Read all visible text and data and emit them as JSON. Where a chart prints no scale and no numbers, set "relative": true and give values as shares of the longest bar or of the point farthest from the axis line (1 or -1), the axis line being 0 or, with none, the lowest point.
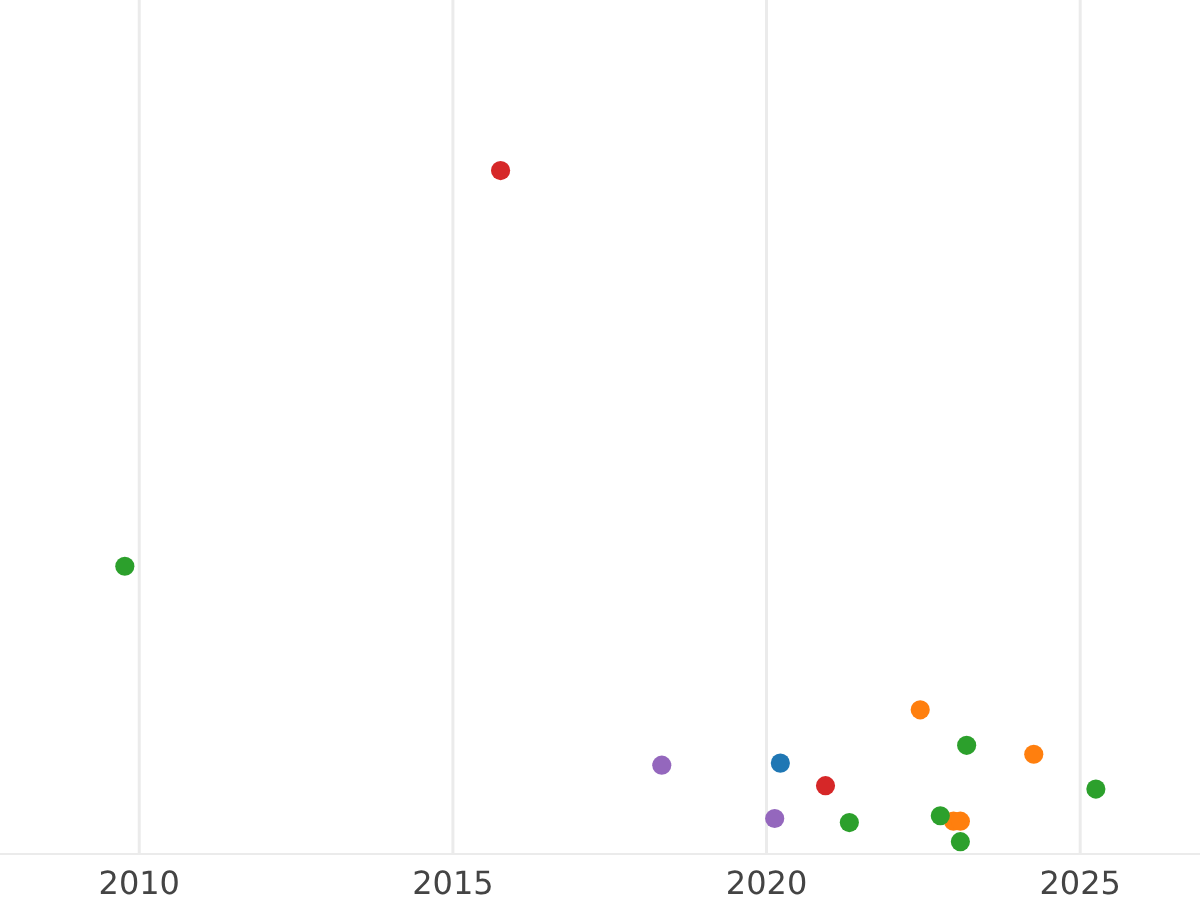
{
  "chart_data": {
    "type": "scatter",
    "relative": true,
    "xlim": [
      2007.78,
      2026.91
    ],
    "xticks": [
      2010,
      2015,
      2020,
      2025
    ],
    "grid": "x",
    "marker": "circle",
    "series": [
      {
        "color": "#1f77b4",
        "x": [
          2020.22
        ],
        "values": [
          0.133
        ]
      },
      {
        "color": "#ff7f0e",
        "x": [
          2022.45,
          2024.26,
          2022.98,
          2023.09
        ],
        "values": [
          0.211,
          0.146,
          0.048,
          0.048
        ]
      },
      {
        "color": "#2ca02c",
        "x": [
          2009.77,
          2023.19,
          2025.25,
          2021.32,
          2022.77,
          2023.09
        ],
        "values": [
          0.421,
          0.159,
          0.095,
          0.046,
          0.056,
          0.018
        ]
      },
      {
        "color": "#d62728",
        "x": [
          2015.76,
          2020.94
        ],
        "values": [
          1,
          0.1
        ]
      },
      {
        "color": "#9467bd",
        "x": [
          2018.33,
          2020.13
        ],
        "values": [
          0.13,
          0.052
        ]
      }
    ]
  }
}
